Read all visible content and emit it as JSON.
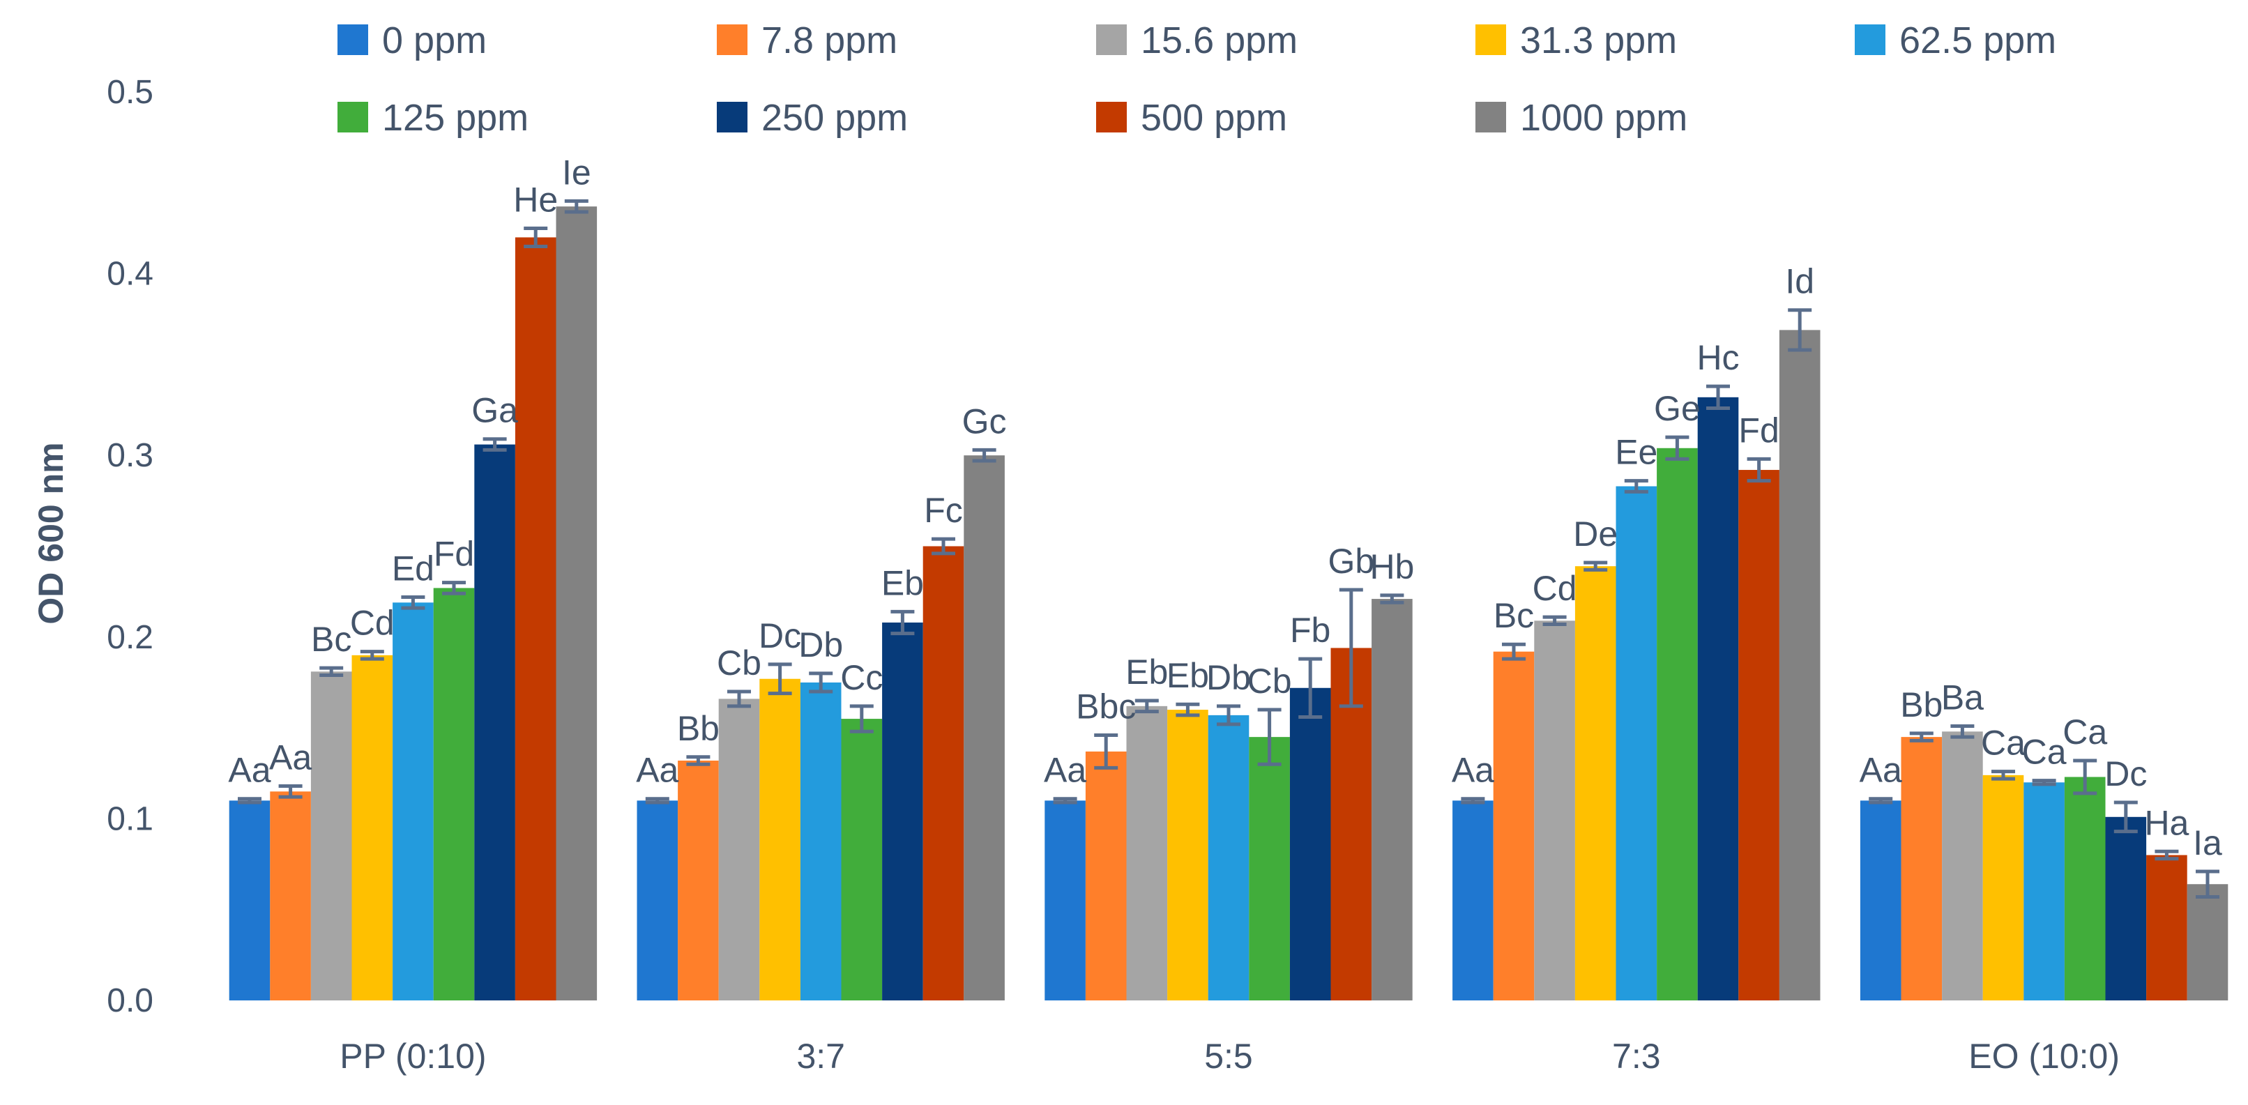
{
  "chart_data": {
    "type": "bar",
    "title": "",
    "xlabel": "",
    "ylabel": "OD  600 nm",
    "ylim": [
      0,
      0.5
    ],
    "yticks": [
      0.0,
      0.1,
      0.2,
      0.3,
      0.4,
      0.5
    ],
    "ytick_labels": [
      "0.0",
      "0.1",
      "0.2",
      "0.3",
      "0.4",
      "0.5"
    ],
    "legend_position": "top",
    "categories": [
      "PP (0:10)",
      "3:7",
      "5:5",
      "7:3",
      "EO (10:0)"
    ],
    "series": [
      {
        "name": "0 ppm",
        "color": "#1F77D0",
        "values": [
          0.11,
          0.11,
          0.11,
          0.11,
          0.11
        ],
        "errors": [
          0.001,
          0.001,
          0.001,
          0.001,
          0.001
        ],
        "labels": [
          "Aa",
          "Aa",
          "Aa",
          "Aa",
          "Aa"
        ]
      },
      {
        "name": "7.8 ppm",
        "color": "#FF7F2A",
        "values": [
          0.115,
          0.132,
          0.137,
          0.192,
          0.145
        ],
        "errors": [
          0.003,
          0.002,
          0.009,
          0.004,
          0.002
        ],
        "labels": [
          "Aa",
          "Bb",
          "Bbc",
          "Bc",
          "Bb"
        ]
      },
      {
        "name": "15.6 ppm",
        "color": "#A5A5A5",
        "values": [
          0.181,
          0.166,
          0.162,
          0.209,
          0.148
        ],
        "errors": [
          0.002,
          0.004,
          0.003,
          0.002,
          0.003
        ],
        "labels": [
          "Bc",
          "Cb",
          "Eb",
          "Cd",
          "Ba"
        ]
      },
      {
        "name": "31.3 ppm",
        "color": "#FFC000",
        "values": [
          0.19,
          0.177,
          0.16,
          0.239,
          0.124
        ],
        "errors": [
          0.002,
          0.008,
          0.003,
          0.002,
          0.002
        ],
        "labels": [
          "Cd",
          "Dc",
          "Eb",
          "De",
          "Ca"
        ]
      },
      {
        "name": "62.5 ppm",
        "color": "#239BDD",
        "values": [
          0.219,
          0.175,
          0.157,
          0.283,
          0.12
        ],
        "errors": [
          0.003,
          0.005,
          0.005,
          0.003,
          0.001
        ],
        "labels": [
          "Ed",
          "Db",
          "Db",
          "Ee",
          "Ca"
        ]
      },
      {
        "name": "125 ppm",
        "color": "#41AD3B",
        "values": [
          0.227,
          0.155,
          0.145,
          0.304,
          0.123
        ],
        "errors": [
          0.003,
          0.007,
          0.015,
          0.006,
          0.009
        ],
        "labels": [
          "Fd",
          "Cc",
          "Cb",
          "Ge",
          "Ca"
        ]
      },
      {
        "name": "250 ppm",
        "color": "#073B7A",
        "values": [
          0.306,
          0.208,
          0.172,
          0.332,
          0.101
        ],
        "errors": [
          0.003,
          0.006,
          0.016,
          0.006,
          0.008
        ],
        "labels": [
          "Ga",
          "Eb",
          "Fb",
          "Hc",
          "Dc"
        ]
      },
      {
        "name": "500 ppm",
        "color": "#C33A00",
        "values": [
          0.42,
          0.25,
          0.194,
          0.292,
          0.08
        ],
        "errors": [
          0.005,
          0.004,
          0.032,
          0.006,
          0.002
        ],
        "labels": [
          "He",
          "Fc",
          "Gb",
          "Fd",
          "Ha"
        ]
      },
      {
        "name": "1000 ppm",
        "color": "#828282",
        "values": [
          0.437,
          0.3,
          0.221,
          0.369,
          0.064
        ],
        "errors": [
          0.003,
          0.003,
          0.002,
          0.011,
          0.007
        ],
        "labels": [
          "Ie",
          "Gc",
          "Hb",
          "Id",
          "Ia"
        ]
      }
    ]
  },
  "colors": {
    "text": "#44546A",
    "error_bar": "#5A6E8C",
    "background": "#FFFFFF"
  }
}
